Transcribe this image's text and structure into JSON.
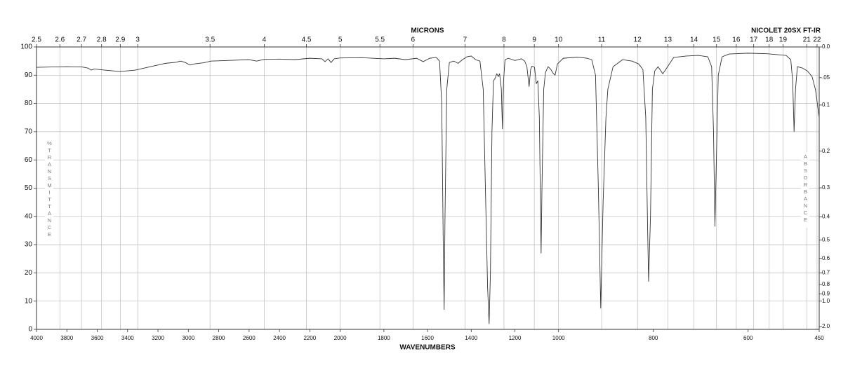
{
  "chart_data": {
    "type": "line",
    "title": "NICOLET 20SX FT-IR",
    "xlabel": "WAVENUMBERS",
    "x2label": "MICRONS",
    "ylabel": "%TRANSMITTANCE",
    "y2label": "ABSORBANCE",
    "xlim": [
      4000,
      450
    ],
    "x_scale_breaks": [
      2000,
      1000
    ],
    "xticks": [
      4000,
      3800,
      3600,
      3400,
      3200,
      3000,
      2800,
      2600,
      2400,
      2200,
      2000,
      1800,
      1600,
      1400,
      1200,
      1000,
      800,
      600,
      450
    ],
    "x2ticks": [
      2.5,
      2.6,
      2.7,
      2.8,
      2.9,
      3,
      3.5,
      4,
      4.5,
      5,
      5.5,
      6,
      7,
      8,
      9,
      10,
      11,
      12,
      13,
      14,
      15,
      16,
      17,
      18,
      19,
      21,
      22
    ],
    "ylim": [
      0,
      100
    ],
    "yticks": [
      0,
      10,
      20,
      30,
      40,
      50,
      60,
      70,
      80,
      90,
      100
    ],
    "y2ticks": [
      {
        "value": 0,
        "label": "0.0"
      },
      {
        "value": 0.05,
        "label": ".05"
      },
      0.1,
      0.2,
      0.3,
      0.4,
      0.5,
      0.6,
      0.7,
      0.8,
      0.9,
      {
        "value": 1,
        "label": "1.0"
      },
      {
        "value": 2,
        "label": "2.0"
      }
    ],
    "grid": true,
    "color": "#333333",
    "x": [
      4000,
      3900,
      3800,
      3700,
      3660,
      3640,
      3620,
      3550,
      3450,
      3350,
      3250,
      3150,
      3080,
      3050,
      3020,
      2990,
      2960,
      2900,
      2850,
      2700,
      2600,
      2550,
      2500,
      2400,
      2300,
      2200,
      2120,
      2100,
      2080,
      2060,
      2040,
      2000,
      1900,
      1800,
      1750,
      1700,
      1650,
      1620,
      1590,
      1560,
      1545,
      1535,
      1528,
      1524,
      1520,
      1512,
      1500,
      1480,
      1460,
      1440,
      1420,
      1400,
      1380,
      1360,
      1345,
      1335,
      1325,
      1318,
      1312,
      1305,
      1298,
      1290,
      1283,
      1276,
      1270,
      1262,
      1257,
      1252,
      1245,
      1230,
      1200,
      1170,
      1155,
      1145,
      1135,
      1128,
      1122,
      1110,
      1102,
      1095,
      1088,
      1083,
      1080,
      1076,
      1068,
      1060,
      1048,
      1035,
      1026,
      1016,
      1005,
      990,
      960,
      940,
      930,
      922,
      916,
      911,
      906,
      900,
      896,
      885,
      865,
      845,
      831,
      822,
      816,
      812,
      810,
      806,
      802,
      797,
      790,
      780,
      770,
      757,
      730,
      705,
      685,
      677,
      673,
      670,
      667,
      663,
      655,
      640,
      600,
      560,
      520,
      510,
      506,
      503,
      500,
      496,
      485,
      475,
      465,
      458,
      450
    ],
    "values": [
      92.8,
      92.9,
      93,
      92.9,
      92.5,
      91.8,
      92.2,
      91.8,
      91.3,
      91.8,
      93,
      94.2,
      94.6,
      95,
      94.5,
      93.6,
      94,
      94.4,
      95,
      95.3,
      95.5,
      95,
      95.6,
      95.7,
      95.5,
      96,
      95.8,
      94.8,
      95.8,
      94.5,
      95.8,
      96.1,
      96.2,
      95.8,
      96,
      95.5,
      96,
      94.8,
      96,
      96.3,
      95,
      80,
      30,
      7,
      40,
      85,
      94.5,
      95,
      94.2,
      95.5,
      96.5,
      96.8,
      95.5,
      95,
      85,
      50,
      15,
      2,
      20,
      70,
      88,
      89,
      90.5,
      89.5,
      90.5,
      85,
      71,
      88,
      95.5,
      96,
      95.2,
      95.8,
      95,
      93,
      86,
      92,
      93.2,
      92.8,
      87,
      88,
      75,
      45,
      27,
      50,
      85,
      91,
      93,
      92,
      90.8,
      90,
      94,
      96,
      96.4,
      96,
      95.5,
      90,
      50,
      7.5,
      45,
      75,
      85,
      93,
      95.5,
      95,
      94,
      92,
      75,
      35,
      17,
      40,
      85,
      91.5,
      93,
      90.5,
      93,
      96.3,
      96.8,
      97,
      96.5,
      93,
      70,
      36.5,
      60,
      90,
      96.5,
      97.5,
      97.8,
      97.6,
      97,
      95.5,
      88,
      70,
      85,
      93,
      92.5,
      91.5,
      89.5,
      85,
      75
    ]
  }
}
